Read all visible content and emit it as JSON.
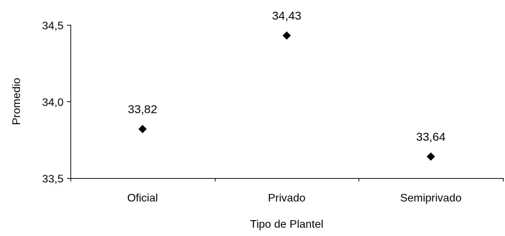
{
  "chart_data": {
    "type": "scatter",
    "categories": [
      "Oficial",
      "Privado",
      "Semiprivado"
    ],
    "values": [
      33.82,
      34.43,
      33.64
    ],
    "data_labels": [
      "33,82",
      "34,43",
      "33,64"
    ],
    "xlabel": "Tipo de Plantel",
    "ylabel": "Promedio",
    "ylim": [
      33.5,
      34.5
    ],
    "yticks": [
      33.5,
      34.0,
      34.5
    ],
    "ytick_labels": [
      "33,5",
      "34,0",
      "34,5"
    ],
    "marker": "diamond",
    "marker_color": "#000000",
    "grid": false,
    "legend": "none"
  }
}
